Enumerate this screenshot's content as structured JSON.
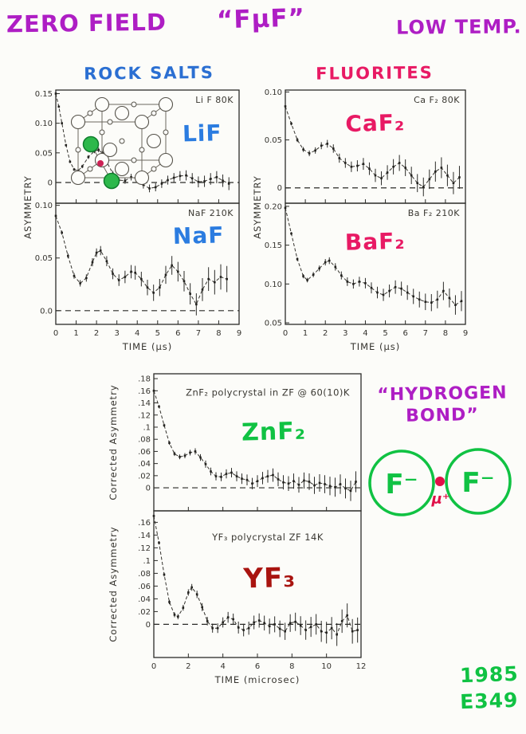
{
  "header": {
    "left": "ZERO FIELD",
    "center": "“FμF”",
    "right": "LOW TEMP."
  },
  "sections": {
    "rock_salts_title": "ROCK SALTS",
    "fluorites_title": "FLUORITES",
    "hydrogen_bond_line1": "“HYDROGEN",
    "hydrogen_bond_line2": "BOND”",
    "fmuf_diagram": {
      "f_left": "F⁻",
      "f_right": "F⁻",
      "muon": "μ⁺"
    },
    "footer": {
      "year": "1985",
      "experiment": "E349"
    }
  },
  "colors": {
    "purple": "#ae1ec4",
    "blue": "#2b6fd2",
    "pink": "#e81a64",
    "green": "#10c243",
    "dark_red": "#a91410",
    "muon_red": "#e01048",
    "ink": "#2b2b28"
  },
  "chart_data": [
    {
      "id": "rock_salts",
      "type": "line",
      "group_title": "ROCK SALTS",
      "xlabel": "TIME (μs)",
      "ylabel": "ASYMMETRY",
      "xlim": [
        0,
        9
      ],
      "xticks": [
        0,
        1,
        2,
        3,
        4,
        5,
        6,
        7,
        8,
        9
      ],
      "xtick_labels": [
        "0",
        "1",
        "2",
        "3",
        "4",
        "5",
        "6",
        "7",
        "8",
        "9"
      ],
      "legend": "none",
      "grid": false,
      "panels": [
        {
          "corner_label": "Li F 80K",
          "annotation": "LiF",
          "ann_color": "#2b7ce0",
          "ann_size": 28,
          "ann_x": 0.8,
          "ann_y": 0.45,
          "has_inset": true,
          "ylim": [
            -0.035,
            0.156
          ],
          "yticks": [
            0.15,
            0.1,
            0.05,
            0
          ],
          "ytick_labels": [
            "0.15",
            "0.10",
            "0.05",
            "0"
          ],
          "err0": 0.0015,
          "err1": 0.0011,
          "x": [
            0,
            0.15,
            0.3,
            0.5,
            0.7,
            0.9,
            1.1,
            1.3,
            1.6,
            1.9,
            2.1,
            2.3,
            2.5,
            2.8,
            3.1,
            3.4,
            3.7,
            4.0,
            4.3,
            4.6,
            4.9,
            5.2,
            5.5,
            5.8,
            6.1,
            6.4,
            6.7,
            7.0,
            7.3,
            7.6,
            7.9,
            8.2,
            8.5
          ],
          "y": [
            0.15,
            0.128,
            0.1,
            0.063,
            0.035,
            0.022,
            0.02,
            0.027,
            0.043,
            0.053,
            0.055,
            0.049,
            0.035,
            0.015,
            0.004,
            0.003,
            0.009,
            0.006,
            -0.004,
            -0.01,
            -0.008,
            -0.002,
            0.004,
            0.008,
            0.011,
            0.012,
            0.007,
            0.001,
            0.002,
            0.006,
            0.009,
            0.003,
            -0.002
          ]
        },
        {
          "corner_label": "NaF 210K",
          "annotation": "NaF",
          "ann_color": "#2b7ce0",
          "ann_size": 28,
          "ann_x": 0.78,
          "ann_y": 0.33,
          "ylim": [
            -0.013,
            0.102
          ],
          "yticks": [
            0.1,
            0.05,
            0.0
          ],
          "ytick_labels": [
            "0.10",
            "0.05",
            "0.0"
          ],
          "err0": 0.0015,
          "err1": 0.0013,
          "x": [
            0,
            0.3,
            0.6,
            0.9,
            1.2,
            1.5,
            1.8,
            2.0,
            2.2,
            2.5,
            2.8,
            3.1,
            3.4,
            3.7,
            3.9,
            4.2,
            4.5,
            4.8,
            5.1,
            5.4,
            5.7,
            6.0,
            6.3,
            6.6,
            6.9,
            7.2,
            7.5,
            7.8,
            8.1,
            8.4
          ],
          "y": [
            0.09,
            0.074,
            0.052,
            0.033,
            0.026,
            0.031,
            0.046,
            0.055,
            0.057,
            0.047,
            0.035,
            0.029,
            0.032,
            0.037,
            0.036,
            0.03,
            0.022,
            0.017,
            0.022,
            0.034,
            0.043,
            0.037,
            0.028,
            0.016,
            0.006,
            0.02,
            0.03,
            0.027,
            0.032,
            0.03
          ]
        }
      ]
    },
    {
      "id": "fluorites",
      "type": "line",
      "group_title": "FLUORITES",
      "xlabel": "TIME (μs)",
      "ylabel": "ASYMMETRY",
      "xlim": [
        0,
        9
      ],
      "xticks": [
        0,
        1,
        2,
        3,
        4,
        5,
        6,
        7,
        8,
        9
      ],
      "xtick_labels": [
        "0",
        "1",
        "2",
        "3",
        "4",
        "5",
        "6",
        "7",
        "8",
        "9"
      ],
      "legend": "none",
      "grid": false,
      "panels": [
        {
          "corner_label": "Ca F₂ 80K",
          "annotation": "CaF₂",
          "ann_color": "#e81a64",
          "ann_size": 28,
          "ann_x": 0.5,
          "ann_y": 0.36,
          "ylim": [
            -0.016,
            0.102
          ],
          "yticks": [
            0.1,
            0.05,
            0
          ],
          "ytick_labels": [
            "0.10",
            "0.05",
            "0"
          ],
          "err0": 0.0015,
          "err1": 0.0012,
          "x": [
            0,
            0.3,
            0.6,
            0.9,
            1.2,
            1.5,
            1.8,
            2.1,
            2.4,
            2.7,
            3.0,
            3.3,
            3.6,
            3.9,
            4.2,
            4.5,
            4.8,
            5.1,
            5.4,
            5.7,
            6.0,
            6.3,
            6.6,
            6.9,
            7.2,
            7.5,
            7.8,
            8.1,
            8.4,
            8.7
          ],
          "y": [
            0.085,
            0.067,
            0.05,
            0.04,
            0.036,
            0.039,
            0.044,
            0.046,
            0.041,
            0.031,
            0.026,
            0.022,
            0.023,
            0.025,
            0.02,
            0.013,
            0.01,
            0.016,
            0.022,
            0.026,
            0.021,
            0.013,
            0.005,
            0.001,
            0.009,
            0.017,
            0.021,
            0.013,
            0.005,
            0.011
          ]
        },
        {
          "corner_label": "Ba F₂ 210K",
          "annotation": "BaF₂",
          "ann_color": "#e81a64",
          "ann_size": 28,
          "ann_x": 0.5,
          "ann_y": 0.38,
          "ylim": [
            0.048,
            0.204
          ],
          "yticks": [
            0.2,
            0.15,
            0.1,
            0.05
          ],
          "ytick_labels": [
            "0.20",
            "0.15",
            "0.10",
            "0.05"
          ],
          "err0": 0.0015,
          "err1": 0.0013,
          "x": [
            0,
            0.3,
            0.6,
            0.9,
            1.1,
            1.4,
            1.7,
            2.0,
            2.2,
            2.5,
            2.8,
            3.1,
            3.4,
            3.7,
            4.0,
            4.3,
            4.6,
            4.9,
            5.2,
            5.5,
            5.8,
            6.1,
            6.4,
            6.7,
            7.0,
            7.3,
            7.6,
            7.9,
            8.2,
            8.5,
            8.8
          ],
          "y": [
            0.198,
            0.165,
            0.132,
            0.11,
            0.105,
            0.112,
            0.12,
            0.128,
            0.13,
            0.122,
            0.111,
            0.103,
            0.1,
            0.103,
            0.101,
            0.095,
            0.089,
            0.086,
            0.091,
            0.096,
            0.094,
            0.089,
            0.084,
            0.08,
            0.077,
            0.076,
            0.08,
            0.091,
            0.082,
            0.073,
            0.078
          ]
        }
      ]
    },
    {
      "id": "bottom",
      "type": "line",
      "group_title": "",
      "xlabel": "TIME (microsec)",
      "ylabel": "Corrected Asymmetry",
      "ylabel_per_panel": true,
      "xlim": [
        0,
        12
      ],
      "xticks": [
        0,
        2,
        4,
        6,
        8,
        10,
        12
      ],
      "xtick_labels": [
        "0",
        "2",
        "4",
        "6",
        "8",
        "10",
        "12"
      ],
      "legend": "none",
      "grid": false,
      "panels": [
        {
          "caption": "ZnF₂ polycrystal in ZF @ 60(10)K",
          "caption_x": 0.55,
          "caption_y": 0.16,
          "annotation": "ZnF₂",
          "ann_color": "#10c243",
          "ann_size": 30,
          "ann_x": 0.58,
          "ann_y": 0.48,
          "ylim": [
            -0.038,
            0.188
          ],
          "yticks": [
            0.18,
            0.16,
            0.14,
            0.12,
            0.1,
            0.08,
            0.06,
            0.04,
            0.02,
            0
          ],
          "ytick_labels": [
            ".18",
            ".16",
            ".14",
            ".12",
            ".1",
            ".08",
            ".06",
            ".04",
            ".02",
            "0"
          ],
          "err0": 0.002,
          "err1": 0.0013,
          "x": [
            0,
            0.3,
            0.6,
            0.9,
            1.2,
            1.5,
            1.8,
            2.1,
            2.4,
            2.7,
            3.0,
            3.3,
            3.6,
            3.9,
            4.2,
            4.5,
            4.8,
            5.1,
            5.4,
            5.7,
            6.0,
            6.3,
            6.6,
            6.9,
            7.2,
            7.5,
            7.8,
            8.1,
            8.4,
            8.7,
            9.0,
            9.3,
            9.6,
            9.9,
            10.2,
            10.5,
            10.8,
            11.1,
            11.4,
            11.7
          ],
          "y": [
            0.16,
            0.134,
            0.103,
            0.074,
            0.056,
            0.051,
            0.053,
            0.058,
            0.06,
            0.05,
            0.039,
            0.027,
            0.019,
            0.018,
            0.023,
            0.025,
            0.019,
            0.015,
            0.013,
            0.007,
            0.011,
            0.016,
            0.019,
            0.021,
            0.014,
            0.009,
            0.007,
            0.011,
            0.005,
            0.012,
            0.01,
            0.004,
            0.008,
            0.006,
            0.003,
            0.001,
            0.006,
            -0.001,
            -0.005,
            0.01
          ]
        },
        {
          "caption": "YF₃ polycrystal ZF 14K",
          "caption_x": 0.55,
          "caption_y": 0.2,
          "annotation": "YF₃",
          "ann_color": "#a91410",
          "ann_size": 34,
          "ann_x": 0.56,
          "ann_y": 0.52,
          "ylim": [
            -0.052,
            0.178
          ],
          "yticks": [
            0.16,
            0.14,
            0.12,
            0.1,
            0.08,
            0.06,
            0.04,
            0.02,
            0
          ],
          "ytick_labels": [
            ".16",
            ".14",
            ".12",
            ".1",
            ".08",
            ".06",
            ".04",
            ".02",
            "0"
          ],
          "err0": 0.002,
          "err1": 0.0015,
          "x": [
            0,
            0.3,
            0.6,
            0.9,
            1.2,
            1.4,
            1.7,
            2.0,
            2.2,
            2.5,
            2.8,
            3.1,
            3.4,
            3.7,
            4.0,
            4.3,
            4.6,
            4.9,
            5.2,
            5.5,
            5.8,
            6.1,
            6.4,
            6.7,
            7.0,
            7.3,
            7.6,
            7.9,
            8.2,
            8.5,
            8.8,
            9.1,
            9.4,
            9.7,
            10.0,
            10.3,
            10.6,
            10.9,
            11.2,
            11.5,
            11.8
          ],
          "y": [
            0.17,
            0.128,
            0.078,
            0.035,
            0.015,
            0.012,
            0.026,
            0.05,
            0.058,
            0.047,
            0.027,
            0.005,
            -0.006,
            -0.006,
            0.003,
            0.011,
            0.008,
            -0.005,
            -0.009,
            -0.006,
            0.003,
            0.006,
            0.002,
            -0.003,
            0.0,
            -0.007,
            -0.011,
            0.002,
            0.004,
            -0.002,
            -0.009,
            -0.004,
            0.0,
            -0.011,
            -0.013,
            -0.006,
            -0.016,
            0.005,
            0.014,
            -0.011,
            -0.009
          ]
        }
      ]
    }
  ]
}
